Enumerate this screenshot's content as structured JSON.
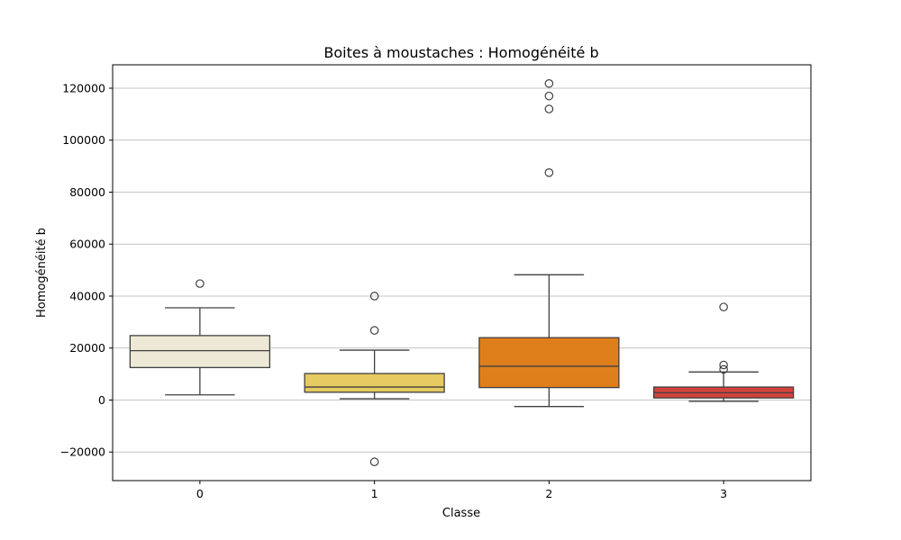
{
  "chart_data": {
    "type": "boxplot",
    "title": "Boites à moustaches : Homogénéité b",
    "xlabel": "Classe",
    "ylabel": "Homogénéité b",
    "categories": [
      "0",
      "1",
      "2",
      "3"
    ],
    "ylim": [
      -31000,
      129000
    ],
    "yticks": [
      -20000,
      0,
      20000,
      40000,
      60000,
      80000,
      100000,
      120000
    ],
    "ytick_labels": [
      "−20000",
      "0",
      "20000",
      "40000",
      "60000",
      "80000",
      "100000",
      "120000"
    ],
    "grid": "y",
    "boxes": [
      {
        "category": "0",
        "whisker_low": 2000,
        "q1": 12500,
        "median": 19000,
        "q3": 24800,
        "whisker_high": 35500,
        "outliers": [
          44800
        ],
        "color": "#ede9d6"
      },
      {
        "category": "1",
        "whisker_low": 500,
        "q1": 3000,
        "median": 5000,
        "q3": 10200,
        "whisker_high": 19200,
        "outliers": [
          40000,
          26800,
          -23800
        ],
        "color": "#e6ca62"
      },
      {
        "category": "2",
        "whisker_low": -2500,
        "q1": 4800,
        "median": 13000,
        "q3": 24000,
        "whisker_high": 48200,
        "outliers": [
          121800,
          117000,
          112000,
          87500
        ],
        "color": "#df7f1c"
      },
      {
        "category": "3",
        "whisker_low": -500,
        "q1": 800,
        "median": 2800,
        "q3": 5000,
        "whisker_high": 10800,
        "outliers": [
          35800,
          13500,
          11800
        ],
        "color": "#d2423a"
      }
    ]
  }
}
